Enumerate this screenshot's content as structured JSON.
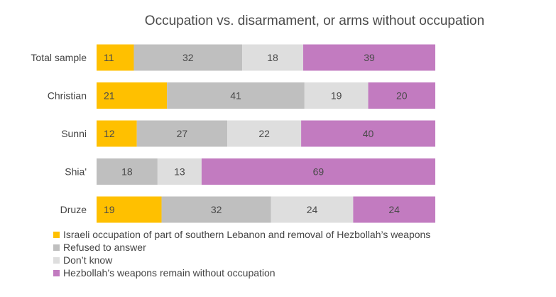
{
  "chart_data": {
    "type": "bar",
    "orientation": "horizontal",
    "stacked": "100%",
    "title": "Occupation vs. disarmament, or arms without occupation",
    "xlabel": "",
    "ylabel": "",
    "xlim": [
      0,
      100
    ],
    "grid": false,
    "legend_position": "bottom-left",
    "categories": [
      "Total sample",
      "Christian",
      "Sunni",
      "Shia'",
      "Druze"
    ],
    "series": [
      {
        "name": "Israeli occupation of part of southern Lebanon and removal of Hezbollah’s weapons",
        "color": "#FFC000",
        "values": [
          11,
          21,
          12,
          null,
          19
        ]
      },
      {
        "name": "Refused to answer",
        "color": "#BFBFBF",
        "values": [
          32,
          41,
          27,
          18,
          32
        ]
      },
      {
        "name": "Don’t know",
        "color": "#DEDEDE",
        "values": [
          18,
          19,
          22,
          13,
          24
        ]
      },
      {
        "name": "Hezbollah’s weapons remain without occupation",
        "color": "#C27BC0",
        "values": [
          39,
          20,
          40,
          69,
          24
        ]
      }
    ]
  }
}
